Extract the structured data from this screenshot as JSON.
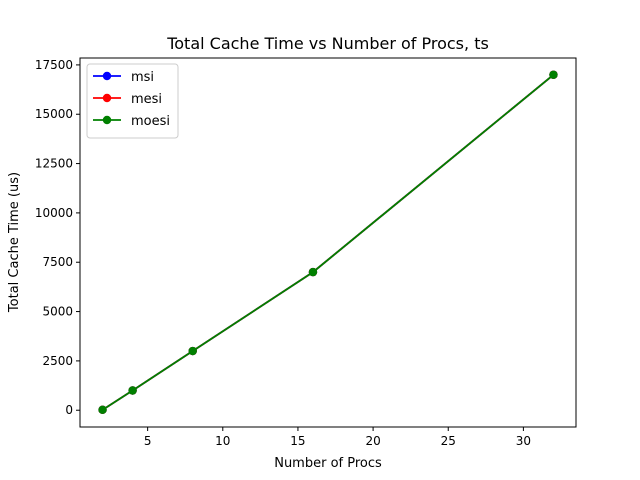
{
  "chart_data": {
    "type": "line",
    "title": "Total Cache Time vs Number of Procs, ts",
    "xlabel": "Number of Procs",
    "ylabel": "Total Cache Time (us)",
    "xlim": [
      0.5,
      33.5
    ],
    "ylim": [
      -850,
      17850
    ],
    "xticks": [
      5,
      10,
      15,
      20,
      25,
      30
    ],
    "yticks": [
      0,
      2500,
      5000,
      7500,
      10000,
      12500,
      15000,
      17500
    ],
    "grid": false,
    "legend": {
      "position": "top-left"
    },
    "x": [
      2,
      4,
      8,
      16,
      32
    ],
    "series": [
      {
        "name": "msi",
        "color": "#0000ff",
        "values": [
          20,
          1000,
          3000,
          7000,
          17000
        ]
      },
      {
        "name": "mesi",
        "color": "#ff0000",
        "values": [
          20,
          1000,
          3000,
          7000,
          17000
        ]
      },
      {
        "name": "moesi",
        "color": "#008000",
        "values": [
          20,
          1000,
          3000,
          7000,
          17000
        ]
      }
    ]
  }
}
